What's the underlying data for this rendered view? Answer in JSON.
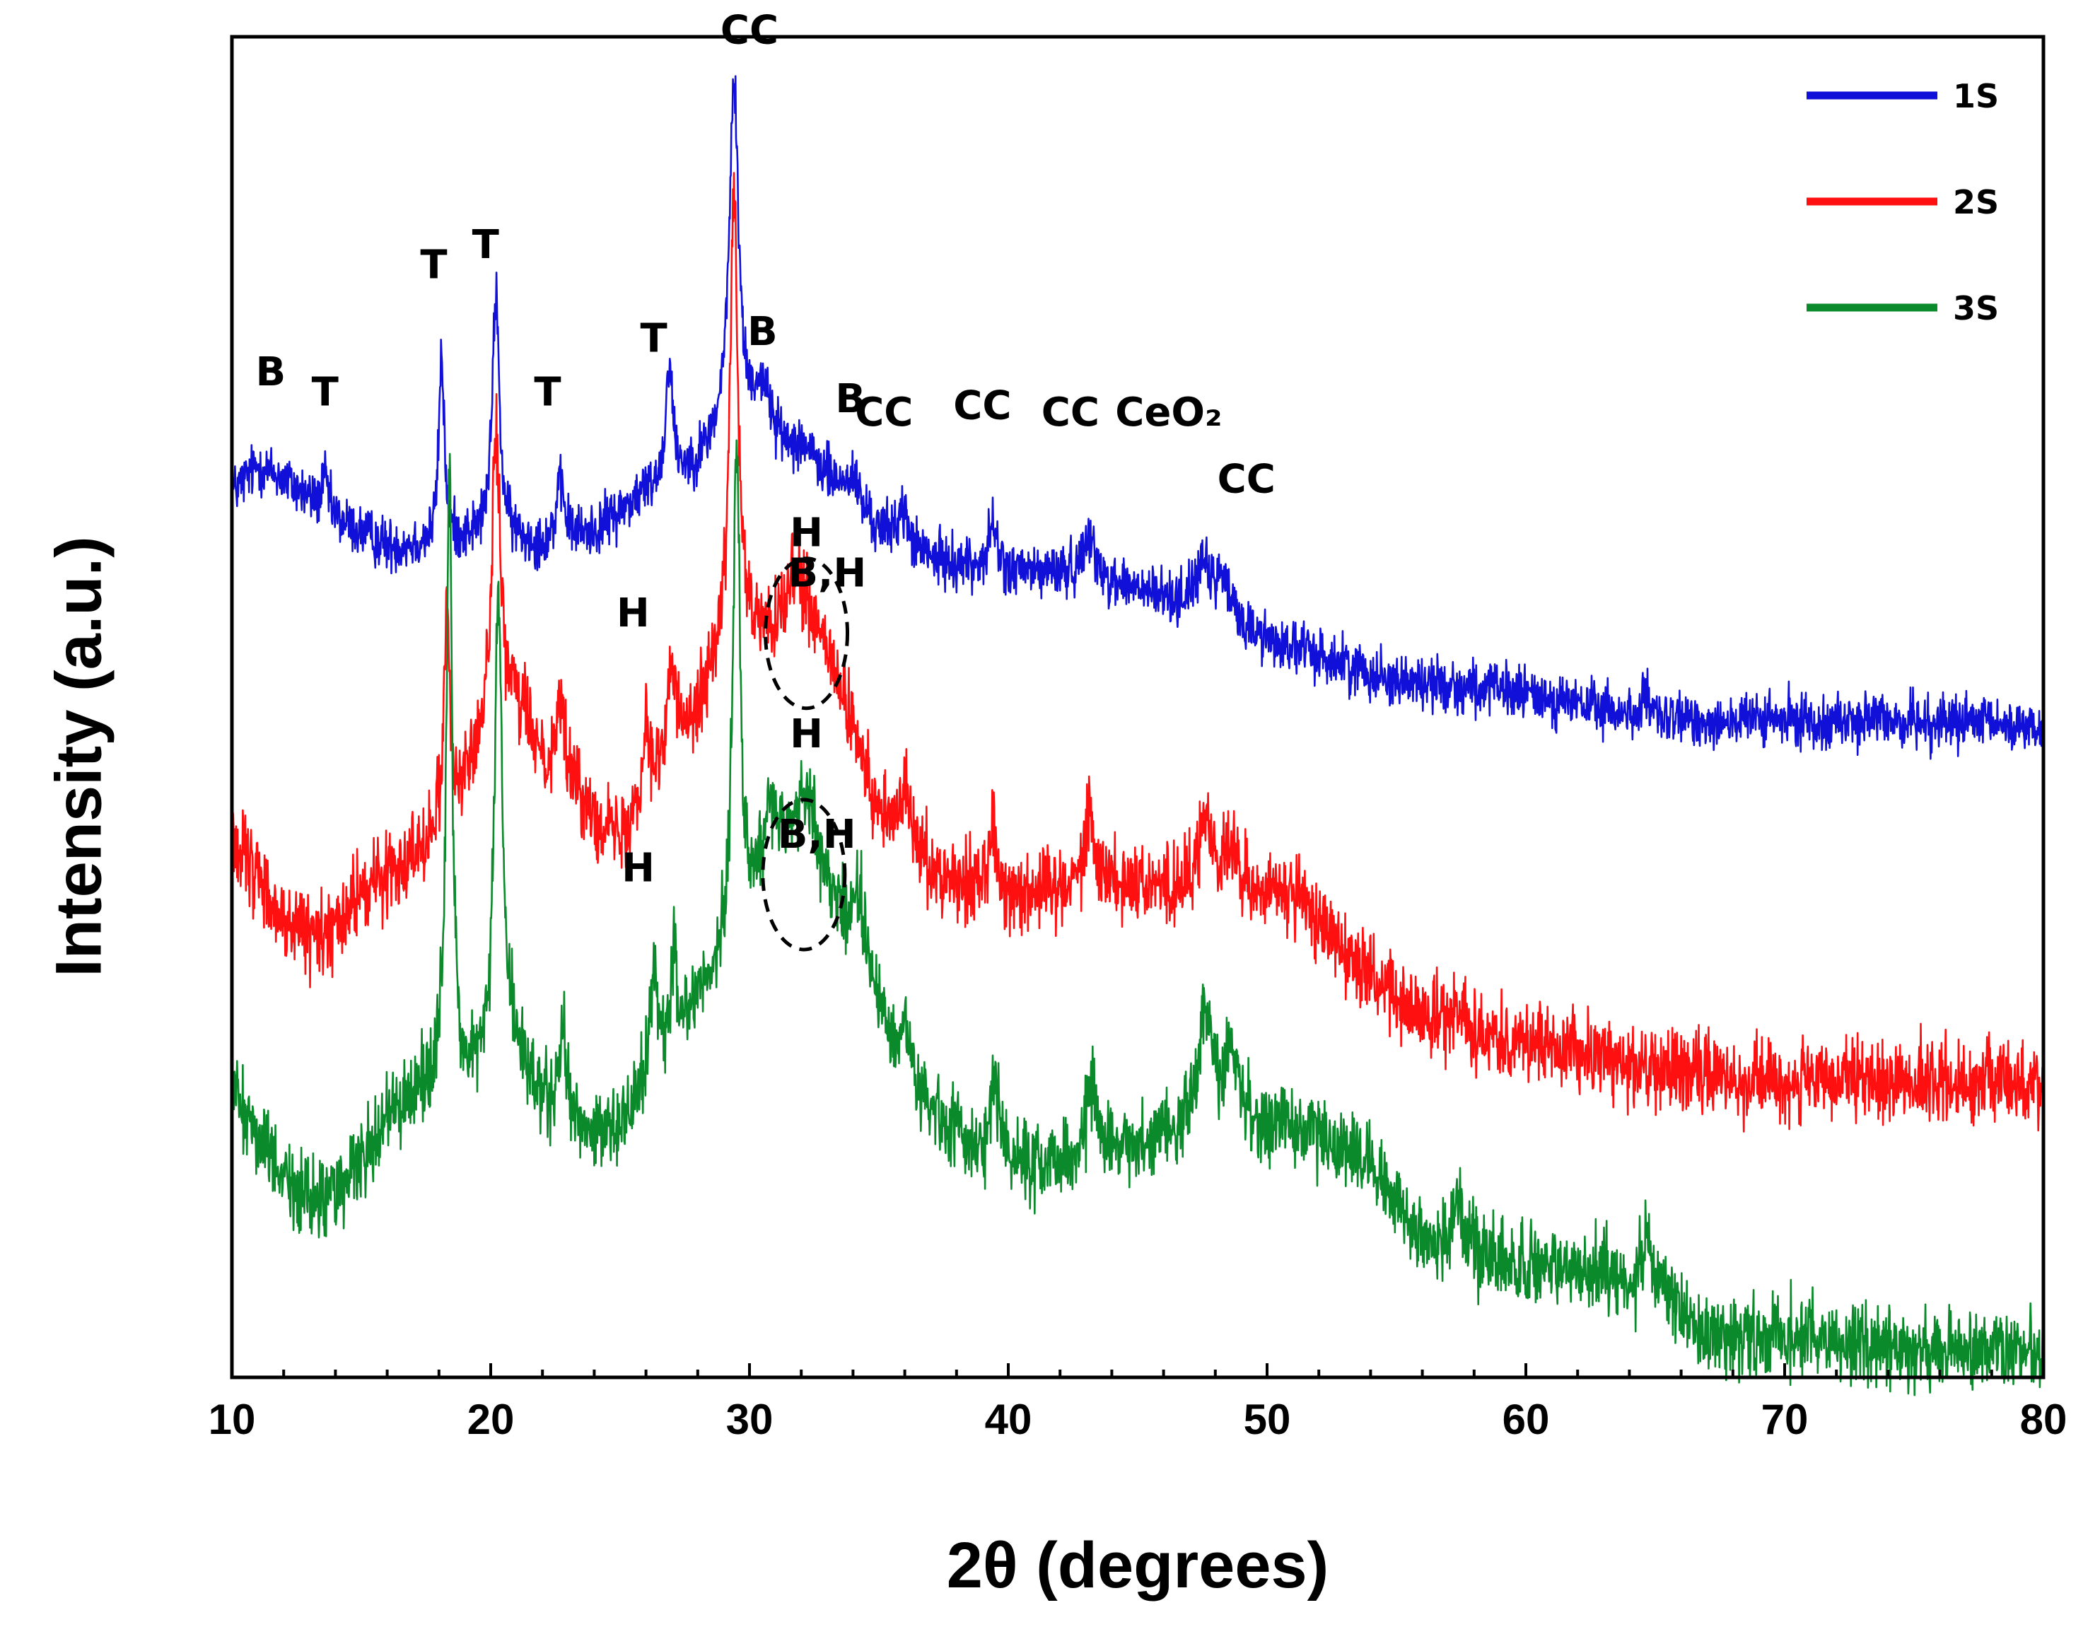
{
  "chart_data": {
    "type": "line",
    "title": "",
    "xlabel": "2θ (degrees)",
    "ylabel": "Intensity (a.u.)",
    "xlim": [
      10,
      80
    ],
    "ylim": [
      0,
      100
    ],
    "x_ticks": [
      10,
      20,
      30,
      40,
      50,
      60,
      70,
      80
    ],
    "y_ticks": [],
    "grid": false,
    "legend_position": "top-right",
    "series": [
      {
        "name": "1S",
        "color": "#1010d8",
        "baseline": [
          [
            10,
            66
          ],
          [
            11,
            68
          ],
          [
            12,
            67
          ],
          [
            14,
            64
          ],
          [
            16,
            62
          ],
          [
            18,
            62
          ],
          [
            20,
            63
          ],
          [
            22,
            62
          ],
          [
            24,
            63
          ],
          [
            26,
            66
          ],
          [
            28,
            68
          ],
          [
            29,
            70
          ],
          [
            30,
            70
          ],
          [
            31,
            69
          ],
          [
            33,
            67
          ],
          [
            35,
            63
          ],
          [
            37,
            61
          ],
          [
            40,
            60
          ],
          [
            43,
            60
          ],
          [
            46,
            58
          ],
          [
            48,
            57
          ],
          [
            50,
            55
          ],
          [
            55,
            52
          ],
          [
            60,
            51
          ],
          [
            65,
            49
          ],
          [
            70,
            49
          ],
          [
            75,
            49
          ],
          [
            80,
            48.5
          ]
        ],
        "peaks": [
          [
            13.6,
            2.5,
            0.15
          ],
          [
            18.1,
            14,
            0.13
          ],
          [
            20.2,
            18,
            0.16
          ],
          [
            22.7,
            4,
            0.2
          ],
          [
            26.9,
            9,
            0.15
          ],
          [
            29.4,
            26,
            0.22
          ],
          [
            30.5,
            4,
            0.4
          ],
          [
            32,
            1.5,
            0.4
          ],
          [
            34,
            2,
            0.3
          ],
          [
            35.9,
            2.5,
            0.25
          ],
          [
            39.4,
            3.5,
            0.18
          ],
          [
            43.1,
            3.5,
            0.2
          ],
          [
            47.5,
            3,
            0.4
          ],
          [
            48.3,
            2.5,
            0.3
          ],
          [
            64.6,
            1.5,
            0.2
          ]
        ],
        "noise": 2.0
      },
      {
        "name": "2S",
        "color": "#ff1010",
        "baseline": [
          [
            10,
            40
          ],
          [
            11,
            37
          ],
          [
            12,
            34
          ],
          [
            13,
            33
          ],
          [
            14,
            33.5
          ],
          [
            15,
            36
          ],
          [
            17,
            39
          ],
          [
            18,
            41
          ],
          [
            19,
            44
          ],
          [
            20,
            48
          ],
          [
            21,
            50
          ],
          [
            22,
            46
          ],
          [
            23,
            44
          ],
          [
            24,
            42
          ],
          [
            25,
            40
          ],
          [
            26,
            44
          ],
          [
            27,
            47
          ],
          [
            28,
            50
          ],
          [
            29,
            54
          ],
          [
            30,
            55
          ],
          [
            31,
            55
          ],
          [
            32,
            56
          ],
          [
            33,
            54
          ],
          [
            34,
            48
          ],
          [
            35,
            42
          ],
          [
            36,
            40
          ],
          [
            37,
            38
          ],
          [
            38,
            37
          ],
          [
            40,
            36
          ],
          [
            43,
            37
          ],
          [
            45,
            37
          ],
          [
            47,
            36
          ],
          [
            49,
            36
          ],
          [
            51,
            36
          ],
          [
            53,
            32
          ],
          [
            55,
            28
          ],
          [
            57,
            26
          ],
          [
            60,
            25
          ],
          [
            65,
            23
          ],
          [
            70,
            22
          ],
          [
            75,
            22
          ],
          [
            80,
            22
          ]
        ],
        "peaks": [
          [
            18.3,
            16,
            0.13
          ],
          [
            20.2,
            22,
            0.2
          ],
          [
            22.7,
            6,
            0.2
          ],
          [
            26.0,
            5,
            0.15
          ],
          [
            27.0,
            6,
            0.15
          ],
          [
            29.4,
            34,
            0.18
          ],
          [
            31.8,
            4,
            0.4
          ],
          [
            36.0,
            4,
            0.22
          ],
          [
            39.4,
            5,
            0.18
          ],
          [
            43.1,
            5,
            0.22
          ],
          [
            47.6,
            6,
            0.3
          ],
          [
            48.6,
            3,
            0.3
          ],
          [
            57.5,
            2,
            0.3
          ]
        ],
        "noise": 3.0
      },
      {
        "name": "3S",
        "color": "#0a8a2a",
        "baseline": [
          [
            10,
            22
          ],
          [
            11,
            18
          ],
          [
            12,
            15
          ],
          [
            13,
            13
          ],
          [
            14,
            14
          ],
          [
            15,
            16
          ],
          [
            16,
            19
          ],
          [
            17,
            21
          ],
          [
            18,
            22
          ],
          [
            19,
            22
          ],
          [
            20,
            23
          ],
          [
            21,
            24
          ],
          [
            22,
            20
          ],
          [
            23,
            19
          ],
          [
            24,
            18
          ],
          [
            25,
            18
          ],
          [
            26,
            22
          ],
          [
            27,
            25
          ],
          [
            28,
            28
          ],
          [
            29,
            31
          ],
          [
            30,
            35
          ],
          [
            31,
            38
          ],
          [
            32,
            40
          ],
          [
            33,
            36
          ],
          [
            34,
            32
          ],
          [
            35,
            27
          ],
          [
            36,
            22
          ],
          [
            38,
            18
          ],
          [
            40,
            16
          ],
          [
            42,
            16
          ],
          [
            44,
            17
          ],
          [
            46,
            18
          ],
          [
            48,
            19
          ],
          [
            50,
            19
          ],
          [
            52,
            18
          ],
          [
            54,
            16
          ],
          [
            56,
            10
          ],
          [
            58,
            9
          ],
          [
            60,
            8
          ],
          [
            63,
            8
          ],
          [
            65,
            6
          ],
          [
            67,
            3
          ],
          [
            70,
            3
          ],
          [
            75,
            2
          ],
          [
            80,
            2
          ]
        ],
        "peaks": [
          [
            18.4,
            46,
            0.13
          ],
          [
            20.3,
            35,
            0.18
          ],
          [
            22.8,
            6,
            0.2
          ],
          [
            26.3,
            8,
            0.15
          ],
          [
            27.1,
            6,
            0.15
          ],
          [
            29.5,
            37,
            0.16
          ],
          [
            30.8,
            5,
            0.3
          ],
          [
            32.3,
            4,
            0.4
          ],
          [
            34.2,
            5,
            0.3
          ],
          [
            36.0,
            5,
            0.2
          ],
          [
            39.5,
            6,
            0.18
          ],
          [
            43.2,
            6,
            0.2
          ],
          [
            47.6,
            9,
            0.3
          ],
          [
            48.6,
            5,
            0.3
          ],
          [
            57.4,
            4,
            0.3
          ],
          [
            64.7,
            4,
            0.25
          ]
        ],
        "noise": 3.0
      }
    ],
    "annotations": [
      {
        "text": "B",
        "x": 11.5,
        "y": 74
      },
      {
        "text": "T",
        "x": 13.6,
        "y": 72.5
      },
      {
        "text": "T",
        "x": 17.8,
        "y": 82
      },
      {
        "text": "T",
        "x": 19.8,
        "y": 83.5
      },
      {
        "text": "T",
        "x": 22.2,
        "y": 72.5
      },
      {
        "text": "T",
        "x": 26.3,
        "y": 76.5
      },
      {
        "text": "CC",
        "x": 30.0,
        "y": 99.5
      },
      {
        "text": "B",
        "x": 30.5,
        "y": 77
      },
      {
        "text": "B",
        "x": 33.9,
        "y": 72
      },
      {
        "text": "CC",
        "x": 35.2,
        "y": 71
      },
      {
        "text": "CC",
        "x": 39.0,
        "y": 71.5
      },
      {
        "text": "CC",
        "x": 42.4,
        "y": 71
      },
      {
        "text": "CeO₂",
        "x": 46.2,
        "y": 71
      },
      {
        "text": "CC",
        "x": 49.2,
        "y": 66
      },
      {
        "text": "H",
        "x": 32.2,
        "y": 62
      },
      {
        "text": "B,H",
        "x": 33.0,
        "y": 59
      },
      {
        "text": "H",
        "x": 25.5,
        "y": 56
      },
      {
        "text": "H",
        "x": 32.2,
        "y": 47
      },
      {
        "text": "B,H",
        "x": 32.6,
        "y": 39.5
      },
      {
        "text": "H",
        "x": 25.7,
        "y": 37
      }
    ],
    "highlight_ellipses": [
      {
        "cx": 32.2,
        "cy": 55.5
      },
      {
        "cx": 32.1,
        "cy": 37.5
      }
    ]
  }
}
